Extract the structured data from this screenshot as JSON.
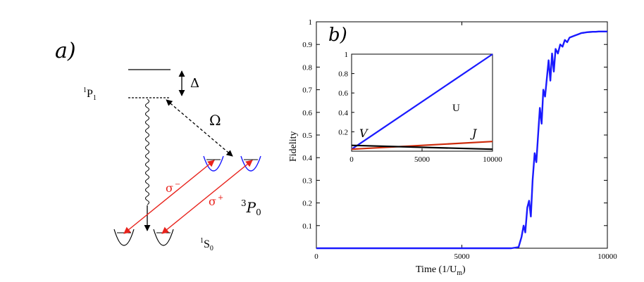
{
  "panel_a": {
    "label": "a)",
    "level_1p1": "1P1",
    "level_1p1_sup": "1",
    "level_1p1_base": "P",
    "level_1p1_sub": "1",
    "detuning": "Δ",
    "rabi": "Ω",
    "sigma_minus_base": "σ",
    "sigma_minus_sup": "−",
    "sigma_plus_base": "σ",
    "sigma_plus_sup": "+",
    "level_3p0_sup": "3",
    "level_3p0_base": "P",
    "level_3p0_sub": "0",
    "level_1s0_sup": "1",
    "level_1s0_base": "S",
    "level_1s0_sub": "0",
    "colors": {
      "laser": "#e8231c",
      "trap": "#1a1aff",
      "line": "#000000"
    }
  },
  "chart_data": [
    {
      "type": "line",
      "panel_label": "b)",
      "xlabel": "Time (1/U",
      "xlabel_sub": "m",
      "xlabel_end": ")",
      "ylabel": "Fidelity",
      "xlim": [
        0,
        10000
      ],
      "ylim": [
        0,
        1
      ],
      "xticks": [
        "0",
        "5000",
        "10000"
      ],
      "yticks": [
        "0.1",
        "0.2",
        "0.3",
        "0.4",
        "0.5",
        "0.6",
        "0.7",
        "0.8",
        "0.9",
        "1"
      ],
      "series": [
        {
          "color": "#1a1aff",
          "x": [
            0,
            6700,
            6950,
            7050,
            7120,
            7180,
            7250,
            7310,
            7370,
            7430,
            7500,
            7560,
            7620,
            7680,
            7740,
            7800,
            7860,
            7920,
            7980,
            8040,
            8100,
            8160,
            8220,
            8300,
            8380,
            8460,
            8540,
            8620,
            8700,
            8800,
            8900,
            9000,
            9100,
            9200,
            9300,
            9400,
            9500,
            9600,
            9700,
            9800,
            9900,
            10000
          ],
          "y": [
            0,
            0,
            0.005,
            0.05,
            0.1,
            0.07,
            0.18,
            0.21,
            0.14,
            0.3,
            0.42,
            0.38,
            0.5,
            0.62,
            0.55,
            0.7,
            0.67,
            0.75,
            0.83,
            0.74,
            0.86,
            0.78,
            0.88,
            0.86,
            0.9,
            0.89,
            0.92,
            0.91,
            0.93,
            0.935,
            0.94,
            0.945,
            0.95,
            0.952,
            0.954,
            0.955,
            0.956,
            0.956,
            0.957,
            0.957,
            0.957,
            0.957
          ]
        }
      ],
      "inset": {
        "type": "line",
        "xlim": [
          0,
          10000
        ],
        "ylim": [
          0,
          1
        ],
        "xticks": [
          "0",
          "5000",
          "10000"
        ],
        "yticks": [
          "0.2",
          "0.4",
          "0.6",
          "0.8",
          "1"
        ],
        "series": [
          {
            "name": "U",
            "color": "#1a1aff",
            "x": [
              0,
              10000
            ],
            "y": [
              0.02,
              1.0
            ]
          },
          {
            "name": "J",
            "color": "#cc2a0a",
            "x": [
              0,
              10000
            ],
            "y": [
              0.02,
              0.1
            ]
          },
          {
            "name": "V",
            "color": "#000000",
            "x": [
              0,
              10000
            ],
            "y": [
              0.06,
              0.02
            ]
          }
        ]
      }
    }
  ]
}
